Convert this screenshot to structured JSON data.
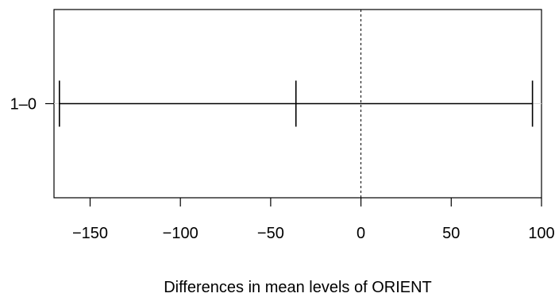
{
  "chart_data": {
    "type": "interval",
    "xlabel": "Differences in mean levels of ORIENT",
    "xlim": [
      -170,
      100
    ],
    "xticks": [
      -150,
      -100,
      -50,
      0,
      50,
      100
    ],
    "xtick_labels": [
      "−150",
      "−100",
      "−50",
      "0",
      "50",
      "100"
    ],
    "reference_line_x": 0,
    "intervals": [
      {
        "label": "1–0",
        "lower": -167,
        "estimate": -36,
        "upper": 95
      }
    ]
  }
}
